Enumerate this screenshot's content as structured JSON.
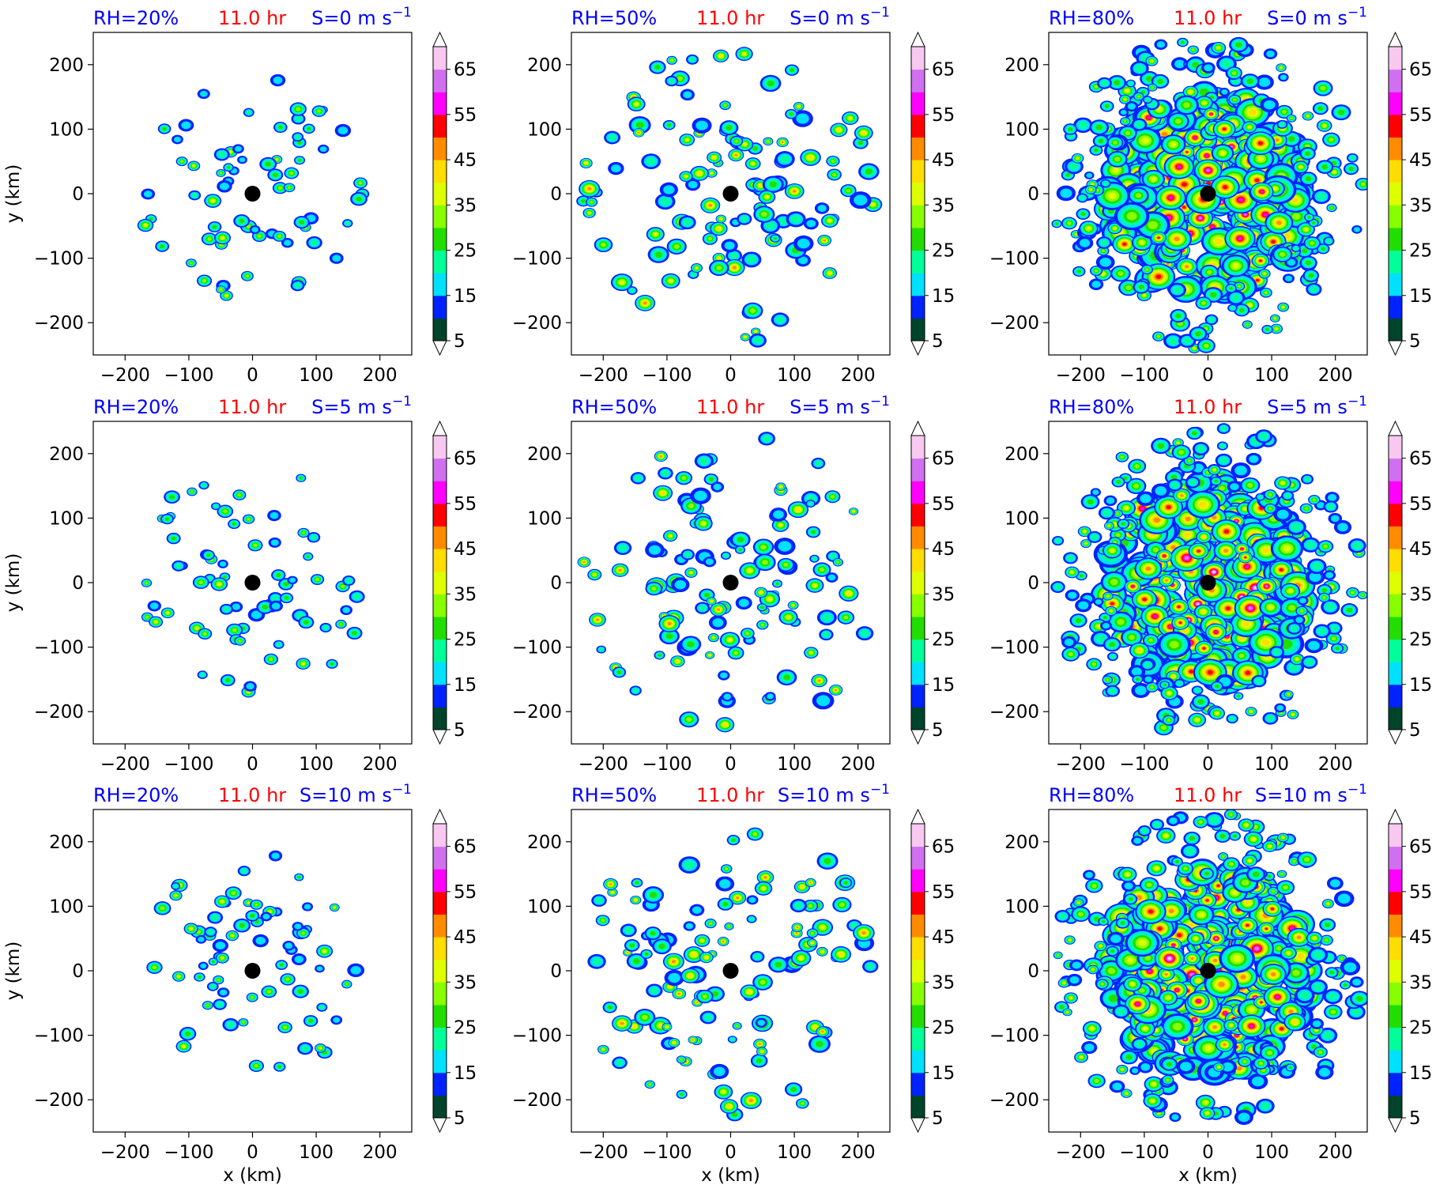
{
  "colors": {
    "title_blue": "#0000ff",
    "title_red": "#ff0000",
    "center_marker": "#000000",
    "levels": [
      "#00442b",
      "#0022ff",
      "#00e0ff",
      "#00ff99",
      "#22dd00",
      "#88ff00",
      "#ddff00",
      "#ffdd00",
      "#ff8c00",
      "#ff0000",
      "#ff00ff",
      "#d070f0",
      "#f8c8f0"
    ]
  },
  "chart_data": {
    "type": "heatmap",
    "description_of_field": "filled contours on a 3x3 grid of panels",
    "row_labels": [
      "S=0 m s",
      "S=5 m s",
      "S=10 m s"
    ],
    "col_labels": [
      "RH=20%",
      "RH=50%",
      "RH=80%"
    ],
    "time_label": "11.0 hr",
    "unit_superscript": "−1",
    "xlabel": "x (km)",
    "ylabel": "y (km)",
    "xlim": [
      -250,
      250
    ],
    "ylim": [
      -250,
      250
    ],
    "xticks": [
      -200,
      -100,
      0,
      100,
      200
    ],
    "yticks": [
      -200,
      -100,
      0,
      100,
      200
    ],
    "tick_labels": [
      "−200",
      "−100",
      "0",
      "100",
      "200"
    ],
    "colorbar": {
      "levels": [
        5,
        10,
        15,
        20,
        25,
        30,
        35,
        40,
        45,
        50,
        55,
        60,
        65,
        70
      ],
      "tick_values": [
        5,
        15,
        25,
        35,
        45,
        55,
        65
      ],
      "tick_labels": [
        "5",
        "15",
        "25",
        "35",
        "45",
        "55",
        "65"
      ],
      "extend": "both"
    },
    "center_marker": {
      "x": 0,
      "y": 0
    },
    "panels": [
      {
        "row": 0,
        "col": 0,
        "rh_label": "RH=20%",
        "time_label": "11.0 hr",
        "s_label": "S=0 m s"
      },
      {
        "row": 0,
        "col": 1,
        "rh_label": "RH=50%",
        "time_label": "11.0 hr",
        "s_label": "S=0 m s"
      },
      {
        "row": 0,
        "col": 2,
        "rh_label": "RH=80%",
        "time_label": "11.0 hr",
        "s_label": "S=0 m s"
      },
      {
        "row": 1,
        "col": 0,
        "rh_label": "RH=20%",
        "time_label": "11.0 hr",
        "s_label": "S=5 m s"
      },
      {
        "row": 1,
        "col": 1,
        "rh_label": "RH=50%",
        "time_label": "11.0 hr",
        "s_label": "S=5 m s"
      },
      {
        "row": 1,
        "col": 2,
        "rh_label": "RH=80%",
        "time_label": "11.0 hr",
        "s_label": "S=5 m s"
      },
      {
        "row": 2,
        "col": 0,
        "rh_label": "RH=20%",
        "time_label": "11.0 hr",
        "s_label": "S=10 m s"
      },
      {
        "row": 2,
        "col": 1,
        "rh_label": "RH=50%",
        "time_label": "11.0 hr",
        "s_label": "S=10 m s"
      },
      {
        "row": 2,
        "col": 2,
        "rh_label": "RH=80%",
        "time_label": "11.0 hr",
        "s_label": "S=10 m s"
      }
    ]
  }
}
